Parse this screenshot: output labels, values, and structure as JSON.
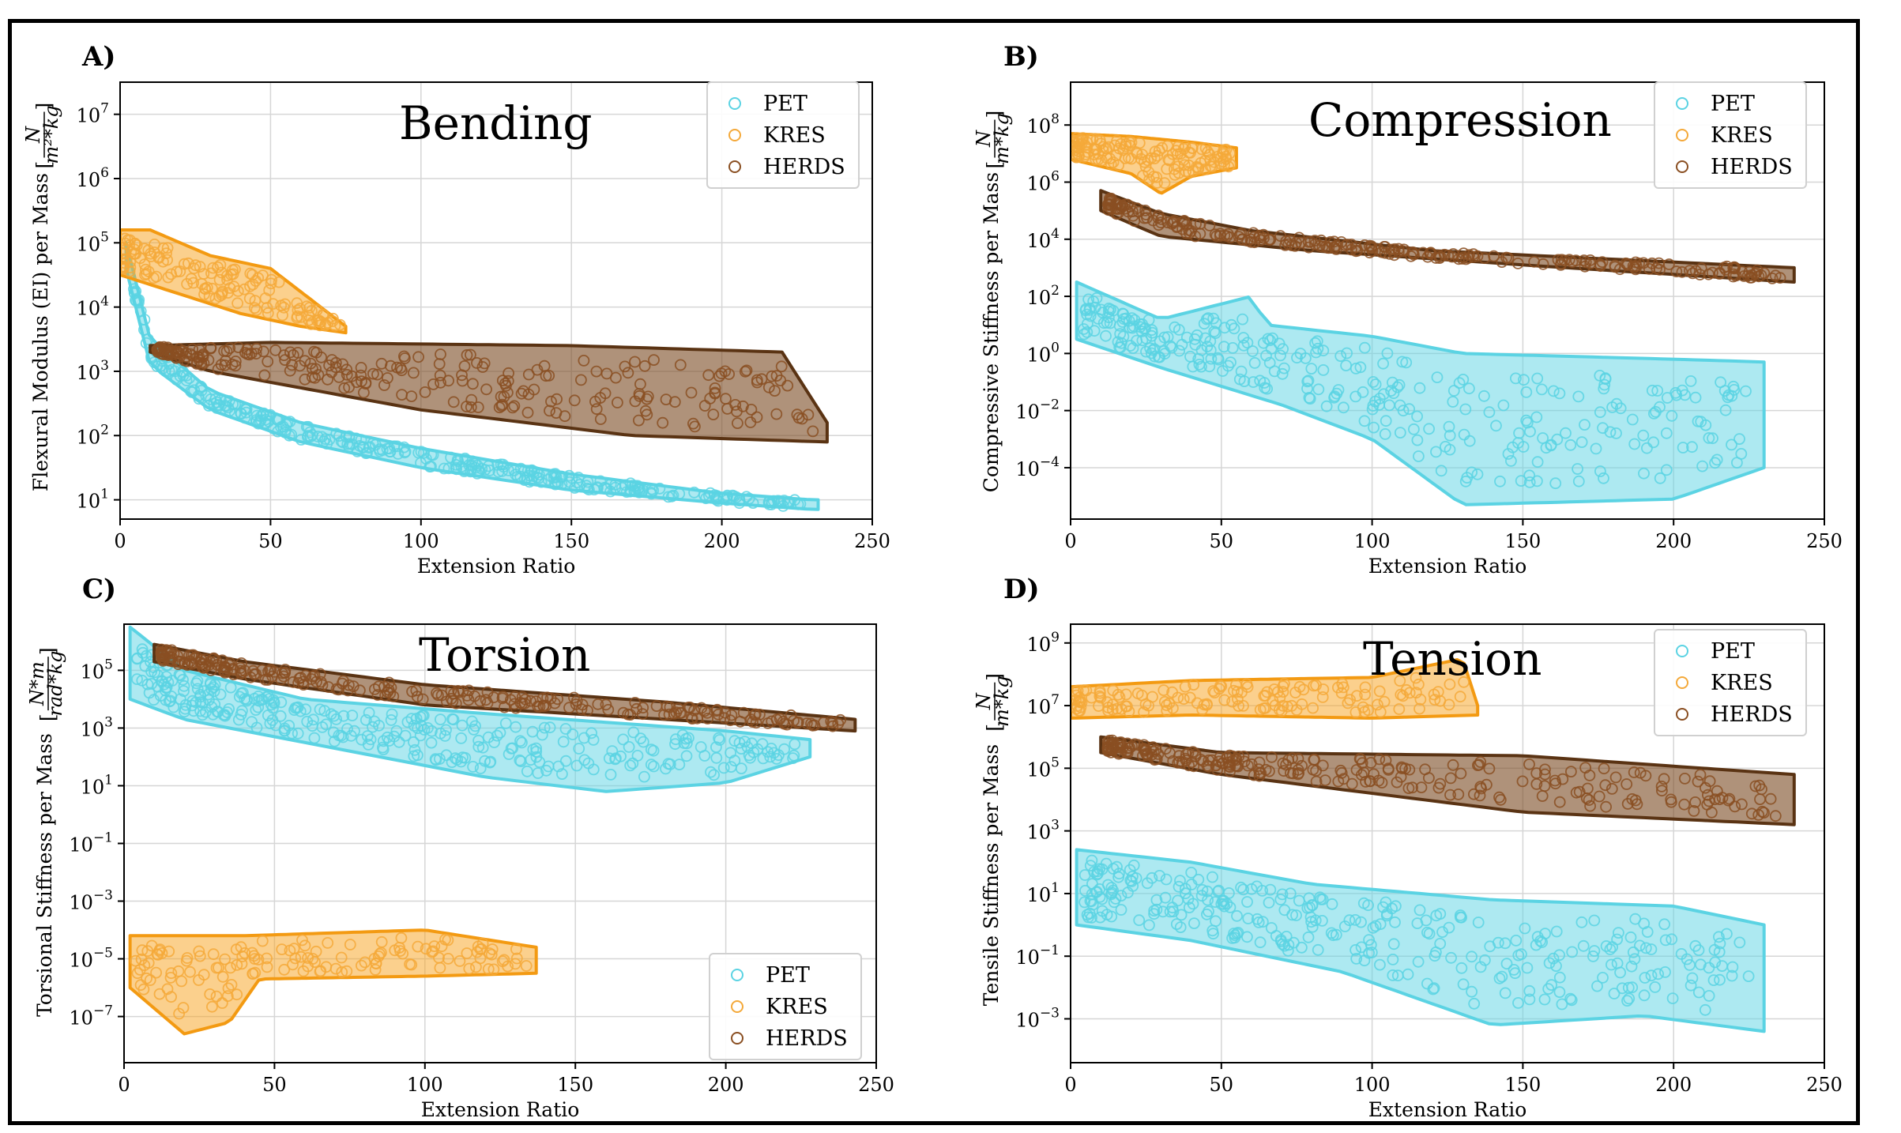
{
  "colors": {
    "PET": "#5bd3e3",
    "KRES": "#f7a21b",
    "HERDS": "#7a4a22"
  },
  "chart_data": [
    {
      "id": "A",
      "type": "scatter",
      "panel_label": "A)",
      "title": "Bending",
      "xlabel": "Extension Ratio",
      "ylabel": "Flexural Modulus (EI) per Mass",
      "yunit_num": "N",
      "yunit_den": "m²*kg",
      "log_y": true,
      "xlim": [
        0,
        250
      ],
      "ylim_exp": [
        0.7,
        7.5
      ],
      "xticks": [
        "0",
        "50",
        "100",
        "150",
        "200",
        "250"
      ],
      "yticks": [
        {
          "exp": 1,
          "label": "10"
        },
        {
          "exp": 2,
          "label": "10"
        },
        {
          "exp": 3,
          "label": "10"
        },
        {
          "exp": 4,
          "label": "10"
        },
        {
          "exp": 5,
          "label": "10"
        },
        {
          "exp": 6,
          "label": "10"
        },
        {
          "exp": 7,
          "label": "10"
        }
      ],
      "grid": true,
      "legend": {
        "entries": [
          "PET",
          "KRES",
          "HERDS"
        ],
        "position": "top-right"
      },
      "series": [
        {
          "name": "PET",
          "x_range": [
            2,
            232
          ],
          "upper": [
            [
              2,
              5.0
            ],
            [
              10,
              3.5
            ],
            [
              30,
              2.7
            ],
            [
              60,
              2.2
            ],
            [
              100,
              1.8
            ],
            [
              150,
              1.4
            ],
            [
              200,
              1.1
            ],
            [
              230,
              1.0
            ]
          ],
          "lower": [
            [
              2,
              4.6
            ],
            [
              10,
              3.1
            ],
            [
              30,
              2.4
            ],
            [
              60,
              1.9
            ],
            [
              100,
              1.5
            ],
            [
              150,
              1.15
            ],
            [
              200,
              0.95
            ],
            [
              230,
              0.85
            ]
          ]
        },
        {
          "name": "KRES",
          "x_range": [
            0,
            75
          ],
          "upper": [
            [
              0,
              5.2
            ],
            [
              10,
              5.2
            ],
            [
              30,
              4.8
            ],
            [
              50,
              4.6
            ],
            [
              75,
              3.7
            ]
          ],
          "lower": [
            [
              0,
              4.5
            ],
            [
              20,
              4.2
            ],
            [
              40,
              3.9
            ],
            [
              60,
              3.7
            ],
            [
              75,
              3.6
            ]
          ]
        },
        {
          "name": "HERDS",
          "x_range": [
            10,
            235
          ],
          "upper": [
            [
              10,
              3.4
            ],
            [
              50,
              3.45
            ],
            [
              150,
              3.4
            ],
            [
              220,
              3.3
            ],
            [
              235,
              2.2
            ]
          ],
          "lower": [
            [
              10,
              3.3
            ],
            [
              30,
              3.0
            ],
            [
              100,
              2.4
            ],
            [
              170,
              2.0
            ],
            [
              235,
              1.9
            ]
          ]
        }
      ],
      "legend_placement_note": ""
    },
    {
      "id": "B",
      "type": "scatter",
      "panel_label": "B)",
      "title": "Compression",
      "xlabel": "Extension Ratio",
      "ylabel": "Compressive Stiffness per Mass",
      "yunit_num": "N",
      "yunit_den": "m*kg",
      "log_y": true,
      "xlim": [
        0,
        250
      ],
      "ylim_exp": [
        -5.8,
        9.5
      ],
      "xticks": [
        "0",
        "50",
        "100",
        "150",
        "200",
        "250"
      ],
      "yticks": [
        {
          "exp": -4,
          "label": "10"
        },
        {
          "exp": -2,
          "label": "10"
        },
        {
          "exp": 0,
          "label": "10"
        },
        {
          "exp": 2,
          "label": "10"
        },
        {
          "exp": 4,
          "label": "10"
        },
        {
          "exp": 6,
          "label": "10"
        },
        {
          "exp": 8,
          "label": "10"
        }
      ],
      "grid": true,
      "legend": {
        "entries": [
          "PET",
          "KRES",
          "HERDS"
        ],
        "position": "top-right"
      },
      "series": [
        {
          "name": "PET",
          "x_range": [
            2,
            230
          ],
          "upper": [
            [
              2,
              2.5
            ],
            [
              30,
              1.2
            ],
            [
              60,
              2.0
            ],
            [
              65,
              1.0
            ],
            [
              100,
              0.6
            ],
            [
              130,
              0.0
            ],
            [
              200,
              -0.2
            ],
            [
              230,
              -0.3
            ]
          ],
          "lower": [
            [
              2,
              0.5
            ],
            [
              30,
              -0.5
            ],
            [
              70,
              -1.8
            ],
            [
              100,
              -3.0
            ],
            [
              130,
              -5.3
            ],
            [
              200,
              -5.1
            ],
            [
              230,
              -4.0
            ]
          ]
        },
        {
          "name": "KRES",
          "x_range": [
            0,
            55
          ],
          "upper": [
            [
              0,
              7.7
            ],
            [
              20,
              7.6
            ],
            [
              40,
              7.4
            ],
            [
              55,
              7.2
            ]
          ],
          "lower": [
            [
              0,
              6.8
            ],
            [
              20,
              6.3
            ],
            [
              30,
              5.6
            ],
            [
              40,
              6.2
            ],
            [
              55,
              6.5
            ]
          ]
        },
        {
          "name": "HERDS",
          "x_range": [
            10,
            240
          ],
          "upper": [
            [
              10,
              5.7
            ],
            [
              30,
              4.9
            ],
            [
              60,
              4.3
            ],
            [
              120,
              3.6
            ],
            [
              180,
              3.3
            ],
            [
              240,
              3.0
            ]
          ],
          "lower": [
            [
              10,
              5.0
            ],
            [
              30,
              4.1
            ],
            [
              80,
              3.6
            ],
            [
              150,
              3.1
            ],
            [
              240,
              2.5
            ]
          ]
        }
      ]
    },
    {
      "id": "C",
      "type": "scatter",
      "panel_label": "C)",
      "title": "Torsion",
      "xlabel": "Extension Ratio",
      "ylabel": "Torsional Stiffness per Mass",
      "yunit_num": "N*m",
      "yunit_den": "rad*kg",
      "log_y": true,
      "xlim": [
        0,
        250
      ],
      "ylim_exp": [
        -8.6,
        6.6
      ],
      "xticks": [
        "0",
        "50",
        "100",
        "150",
        "200",
        "250"
      ],
      "yticks": [
        {
          "exp": -7,
          "label": "10"
        },
        {
          "exp": -5,
          "label": "10"
        },
        {
          "exp": -3,
          "label": "10"
        },
        {
          "exp": -1,
          "label": "10"
        },
        {
          "exp": 1,
          "label": "10"
        },
        {
          "exp": 3,
          "label": "10"
        },
        {
          "exp": 5,
          "label": "10"
        }
      ],
      "grid": true,
      "legend": {
        "entries": [
          "PET",
          "KRES",
          "HERDS"
        ],
        "position": "bottom-right"
      },
      "series": [
        {
          "name": "PET",
          "x_range": [
            2,
            228
          ],
          "upper": [
            [
              2,
              6.5
            ],
            [
              20,
              5.0
            ],
            [
              60,
              4.0
            ],
            [
              120,
              3.5
            ],
            [
              200,
              2.9
            ],
            [
              228,
              2.6
            ]
          ],
          "lower": [
            [
              2,
              4.0
            ],
            [
              20,
              3.3
            ],
            [
              60,
              2.5
            ],
            [
              120,
              1.3
            ],
            [
              160,
              0.8
            ],
            [
              200,
              1.1
            ],
            [
              228,
              2.0
            ]
          ]
        },
        {
          "name": "KRES",
          "x_range": [
            2,
            137
          ],
          "upper": [
            [
              2,
              -4.2
            ],
            [
              40,
              -4.2
            ],
            [
              100,
              -4.0
            ],
            [
              137,
              -4.6
            ]
          ],
          "lower": [
            [
              2,
              -6.0
            ],
            [
              20,
              -7.6
            ],
            [
              35,
              -7.2
            ],
            [
              45,
              -5.7
            ],
            [
              100,
              -5.6
            ],
            [
              137,
              -5.5
            ]
          ]
        },
        {
          "name": "HERDS",
          "x_range": [
            10,
            243
          ],
          "upper": [
            [
              10,
              5.9
            ],
            [
              40,
              5.3
            ],
            [
              100,
              4.5
            ],
            [
              180,
              3.9
            ],
            [
              243,
              3.3
            ]
          ],
          "lower": [
            [
              10,
              5.3
            ],
            [
              40,
              4.7
            ],
            [
              100,
              3.8
            ],
            [
              180,
              3.3
            ],
            [
              243,
              2.9
            ]
          ]
        }
      ]
    },
    {
      "id": "D",
      "type": "scatter",
      "panel_label": "D)",
      "title": "Tension",
      "xlabel": "Extension Ratio",
      "ylabel": "Tensile Stiffness per Mass",
      "yunit_num": "N",
      "yunit_den": "m*kg",
      "log_y": true,
      "xlim": [
        0,
        250
      ],
      "ylim_exp": [
        -4.4,
        9.6
      ],
      "xticks": [
        "0",
        "50",
        "100",
        "150",
        "200",
        "250"
      ],
      "yticks": [
        {
          "exp": -3,
          "label": "10"
        },
        {
          "exp": -1,
          "label": "10"
        },
        {
          "exp": 1,
          "label": "10"
        },
        {
          "exp": 3,
          "label": "10"
        },
        {
          "exp": 5,
          "label": "10"
        },
        {
          "exp": 7,
          "label": "10"
        },
        {
          "exp": 9,
          "label": "10"
        }
      ],
      "grid": true,
      "legend": {
        "entries": [
          "PET",
          "KRES",
          "HERDS"
        ],
        "position": "top-right"
      },
      "series": [
        {
          "name": "PET",
          "x_range": [
            2,
            230
          ],
          "upper": [
            [
              2,
              2.4
            ],
            [
              40,
              2.0
            ],
            [
              80,
              1.3
            ],
            [
              140,
              0.8
            ],
            [
              200,
              0.6
            ],
            [
              230,
              0.0
            ]
          ],
          "lower": [
            [
              2,
              0.0
            ],
            [
              40,
              -0.5
            ],
            [
              90,
              -1.5
            ],
            [
              140,
              -3.2
            ],
            [
              190,
              -2.9
            ],
            [
              230,
              -3.4
            ]
          ]
        },
        {
          "name": "KRES",
          "x_range": [
            0,
            135
          ],
          "upper": [
            [
              0,
              7.6
            ],
            [
              40,
              7.8
            ],
            [
              100,
              7.9
            ],
            [
              130,
              8.5
            ],
            [
              135,
              7.0
            ]
          ],
          "lower": [
            [
              0,
              6.6
            ],
            [
              40,
              6.7
            ],
            [
              100,
              6.6
            ],
            [
              135,
              6.7
            ]
          ]
        },
        {
          "name": "HERDS",
          "x_range": [
            10,
            240
          ],
          "upper": [
            [
              10,
              6.0
            ],
            [
              50,
              5.5
            ],
            [
              150,
              5.4
            ],
            [
              240,
              4.8
            ]
          ],
          "lower": [
            [
              10,
              5.5
            ],
            [
              50,
              4.8
            ],
            [
              150,
              3.6
            ],
            [
              240,
              3.2
            ]
          ]
        }
      ]
    }
  ]
}
